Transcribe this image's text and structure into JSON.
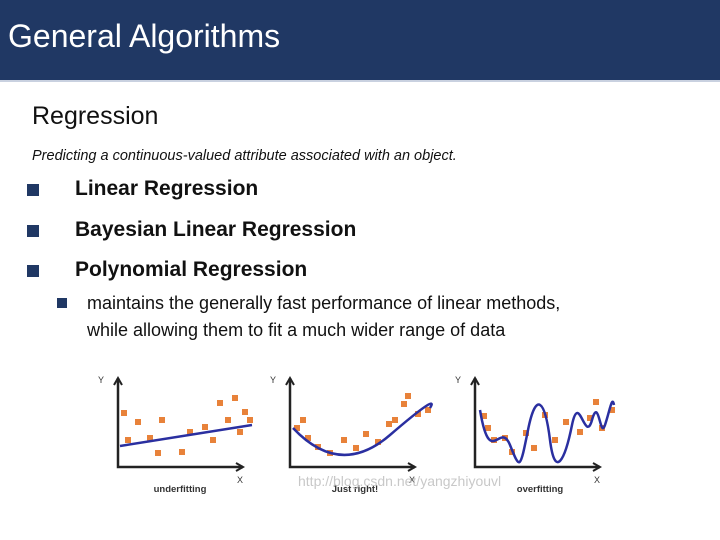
{
  "header": {
    "title": "General Algorithms"
  },
  "section": {
    "title": "Regression",
    "description": "Predicting a continuous-valued attribute associated with an object."
  },
  "bullets": [
    "Linear Regression",
    "Bayesian Linear Regression",
    "Polynomial Regression"
  ],
  "sub_bullet": {
    "lines": [
      "maintains the generally fast performance of linear methods,",
      "while allowing them to fit a much wider range of data"
    ]
  },
  "figures": [
    {
      "y_label": "Y",
      "x_label": "X",
      "caption": "underfitting"
    },
    {
      "y_label": "Y",
      "x_label": "X",
      "caption": "Just right!"
    },
    {
      "y_label": "Y",
      "x_label": "X",
      "caption": "overfitting"
    }
  ],
  "watermark": "http://blog.csdn.net/yangzhiyouvl"
}
